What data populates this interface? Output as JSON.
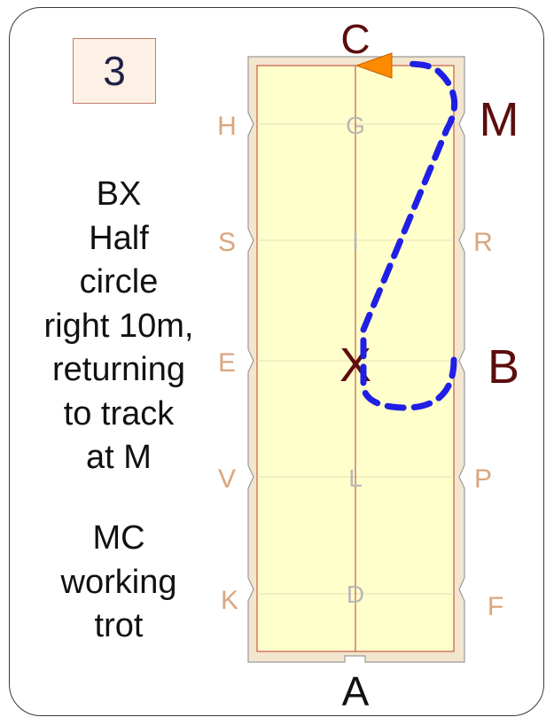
{
  "step_number": "3",
  "instruction_1": [
    "BX",
    "Half",
    "circle",
    "right 10m,",
    "returning",
    "to track",
    "at M"
  ],
  "instruction_2": [
    "MC",
    "working",
    "trot"
  ],
  "arena": {
    "end_markers": {
      "top": "C",
      "bottom": "A"
    },
    "left_markers": [
      "H",
      "S",
      "E",
      "V",
      "K"
    ],
    "right_markers": [
      "M",
      "R",
      "B",
      "P",
      "F"
    ],
    "center_markers": [
      "G",
      "I",
      "X",
      "L",
      "D"
    ]
  },
  "colors": {
    "arena_fill": "#ffffcc",
    "arena_border": "#c0392b",
    "surround": "#f2e6cf",
    "path": "#1f1fe6",
    "arrow": "#ff8a00",
    "key_letter": "#5c0d0d",
    "side_letter": "#d9a67e",
    "center_letter": "#b8b8b8"
  }
}
